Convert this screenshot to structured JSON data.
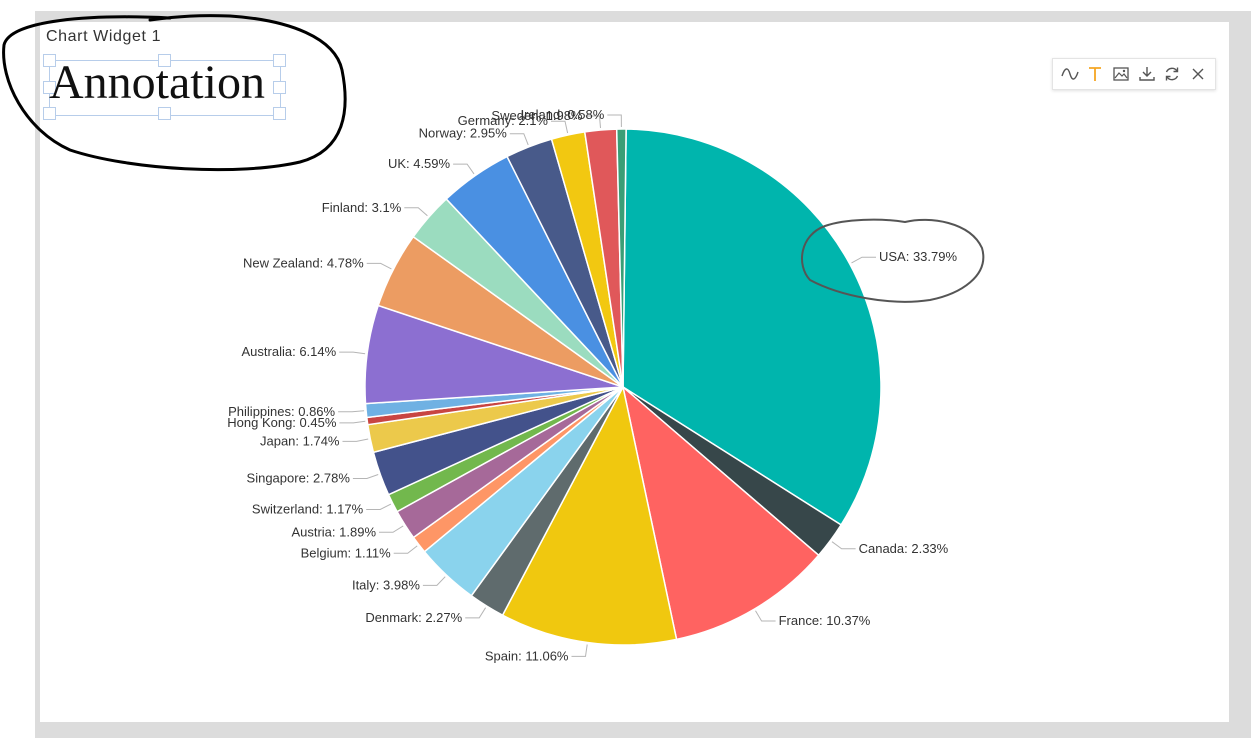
{
  "widget": {
    "title": "Chart Widget 1",
    "annotation_text": "Annotation"
  },
  "toolbar": {
    "icons": [
      "curve-icon",
      "text-icon",
      "image-icon",
      "download-icon",
      "refresh-icon",
      "close-icon"
    ],
    "text_icon_color": "#f5a623"
  },
  "chart_data": {
    "type": "pie",
    "slices": [
      {
        "name": "USA",
        "value": 33.79,
        "label": "USA: 33.79%",
        "color": "#00b5ad"
      },
      {
        "name": "Canada",
        "value": 2.33,
        "label": "Canada: 2.33%",
        "color": "#37474a"
      },
      {
        "name": "France",
        "value": 10.37,
        "label": "France: 10.37%",
        "color": "#ff6361"
      },
      {
        "name": "Spain",
        "value": 11.06,
        "label": "Spain: 11.06%",
        "color": "#f0c80f"
      },
      {
        "name": "Denmark",
        "value": 2.27,
        "label": "Denmark: 2.27%",
        "color": "#5f6b6d"
      },
      {
        "name": "Italy",
        "value": 3.98,
        "label": "Italy: 3.98%",
        "color": "#8ad3ed"
      },
      {
        "name": "Belgium",
        "value": 1.11,
        "label": "Belgium: 1.11%",
        "color": "#fe9666"
      },
      {
        "name": "Austria",
        "value": 1.89,
        "label": "Austria: 1.89%",
        "color": "#a66999"
      },
      {
        "name": "Switzerland",
        "value": 1.17,
        "label": "Switzerland: 1.17%",
        "color": "#72b84d"
      },
      {
        "name": "Singapore",
        "value": 2.78,
        "label": "Singapore: 2.78%",
        "color": "#43528b"
      },
      {
        "name": "Japan",
        "value": 1.74,
        "label": "Japan: 1.74%",
        "color": "#ecc94b"
      },
      {
        "name": "Hong Kong",
        "value": 0.45,
        "label": "Hong Kong: 0.45%",
        "color": "#c84542"
      },
      {
        "name": "Philippines",
        "value": 0.86,
        "label": "Philippines: 0.86%",
        "color": "#6fb1e3"
      },
      {
        "name": "Australia",
        "value": 6.14,
        "label": "Australia: 6.14%",
        "color": "#8c6fd1"
      },
      {
        "name": "New Zealand",
        "value": 4.78,
        "label": "New Zealand: 4.78%",
        "color": "#ec9c62"
      },
      {
        "name": "Finland",
        "value": 3.1,
        "label": "Finland: 3.1%",
        "color": "#9bdcbf"
      },
      {
        "name": "UK",
        "value": 4.59,
        "label": "UK: 4.59%",
        "color": "#4a90e2"
      },
      {
        "name": "Norway",
        "value": 2.95,
        "label": "Norway: 2.95%",
        "color": "#485a8a"
      },
      {
        "name": "Germany",
        "value": 2.1,
        "label": "Germany: 2.1%",
        "color": "#f2c811"
      },
      {
        "name": "Sweden",
        "value": 1.98,
        "label": "Sweden: 1.98%",
        "color": "#e0585a"
      },
      {
        "name": "Ireland",
        "value": 0.58,
        "label": "Ireland: 0.58%",
        "color": "#3a9e76"
      }
    ],
    "legend": "none",
    "label_style": "outside-with-leader-lines"
  }
}
